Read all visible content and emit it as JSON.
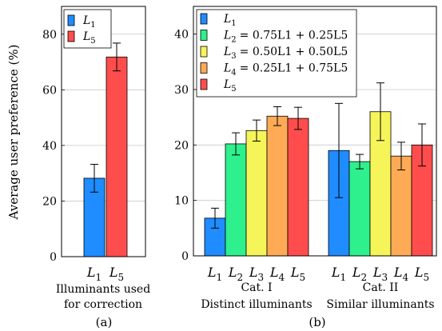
{
  "chart_data": [
    {
      "panel_label": "(a)",
      "type": "bar",
      "ylabel": "Average user preference (%)",
      "ylim": [
        0,
        90
      ],
      "yticks": [
        0,
        20,
        40,
        60,
        80
      ],
      "grid": true,
      "legend_position": "top-left",
      "legend": [
        {
          "symbol": "L",
          "sub": "1",
          "eq": "",
          "color": "#1f8cff"
        },
        {
          "symbol": "L",
          "sub": "5",
          "eq": "",
          "color": "#ff4d4d"
        }
      ],
      "categories": [
        {
          "symbol": "L",
          "sub": "1"
        },
        {
          "symbol": "L",
          "sub": "5"
        }
      ],
      "values": [
        28.2,
        71.8
      ],
      "errors": [
        5,
        5
      ],
      "xlabel_lines": [
        "Illuminants used",
        "for correction"
      ]
    },
    {
      "panel_label": "(b)",
      "type": "bar",
      "ylim": [
        0,
        45
      ],
      "yticks": [
        0,
        10,
        20,
        30,
        40
      ],
      "grid": true,
      "legend_position": "top-left",
      "series": [
        {
          "name": "L1",
          "symbol": "L",
          "sub": "1",
          "eq": "",
          "color": "#1f8cff"
        },
        {
          "name": "L2",
          "symbol": "L",
          "sub": "2",
          "eq": "= 0.75L1 + 0.25L5",
          "color": "#2ef08c"
        },
        {
          "name": "L3",
          "symbol": "L",
          "sub": "3",
          "eq": "= 0.50L1 + 0.50L5",
          "color": "#f5f55a"
        },
        {
          "name": "L4",
          "symbol": "L",
          "sub": "4",
          "eq": "= 0.25L1 + 0.75L5",
          "color": "#ffaa55"
        },
        {
          "name": "L5",
          "symbol": "L",
          "sub": "5",
          "eq": "",
          "color": "#ff4d4d"
        }
      ],
      "groups": [
        {
          "name": "Cat. I",
          "description": "Distinct illuminants",
          "values": [
            6.8,
            20.2,
            22.6,
            25.2,
            24.8
          ],
          "errors": [
            1.8,
            2.0,
            1.9,
            1.7,
            2.0
          ]
        },
        {
          "name": "Cat. II",
          "description": "Similar illuminants",
          "values": [
            19.0,
            17.0,
            26.0,
            18.0,
            20.0
          ],
          "errors": [
            8.5,
            1.3,
            5.2,
            2.5,
            3.8
          ]
        }
      ]
    }
  ]
}
